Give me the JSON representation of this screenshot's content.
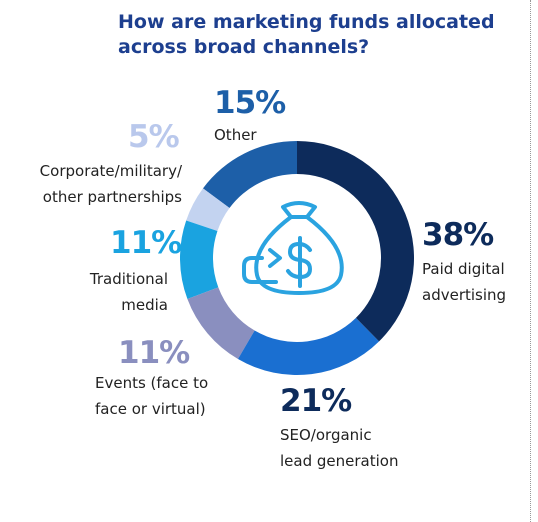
{
  "chart_data": {
    "type": "donut",
    "title": "How are marketing funds allocated\nacross broad channels?",
    "categories": [
      "Paid digital\nadvertising",
      "SEO/organic\nlead generation",
      "Events (face to\nface or virtual)",
      "Traditional\nmedia",
      "Corporate/military/\nother partnerships",
      "Other"
    ],
    "values": [
      38,
      21,
      11,
      11,
      5,
      15
    ],
    "value_labels": [
      "38%",
      "21%",
      "11%",
      "11%",
      "5%",
      "15%"
    ],
    "colors": [
      "#0d2b5b",
      "#1a6fd1",
      "#8a8fbf",
      "#1aa3e0",
      "#c3d3f0",
      "#1d5fa8"
    ],
    "label_colors": [
      "#0d2b5b",
      "#0d2b5b",
      "#8a8fbf",
      "#1aa3e0",
      "#b9c8ec",
      "#1d5fa8"
    ]
  }
}
